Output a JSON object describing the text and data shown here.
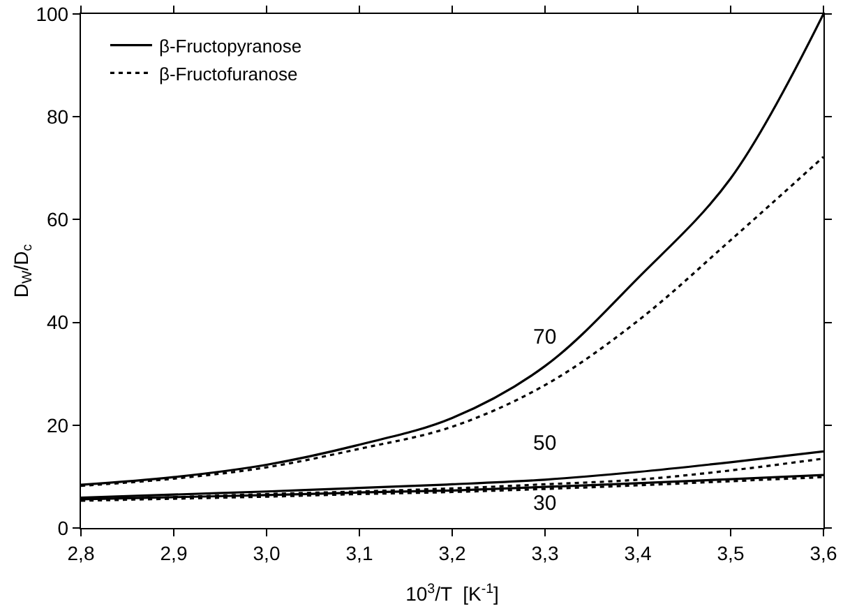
{
  "chart_data": {
    "type": "line",
    "xlabel": "10$^{3}$/T  [K$^{-1}$]",
    "ylabel": "D$_{W}$/D$_{c}$",
    "x": [
      2.8,
      2.9,
      3.0,
      3.1,
      3.2,
      3.3,
      3.4,
      3.5,
      3.6
    ],
    "series": [
      {
        "name": "β-Fructopyranose",
        "color": "#000000",
        "line_style": "solid",
        "values": [
          8.4,
          9.9,
          12.3,
          16.2,
          21.4,
          31.5,
          48.6,
          68,
          100
        ]
      },
      {
        "name": "β-Fructofuranose",
        "color": "#000000",
        "line_style": "dotted",
        "values": [
          8.2,
          9.6,
          11.8,
          15.4,
          19.7,
          27.8,
          40.3,
          56,
          72.2
        ]
      },
      {
        "color": "#000000",
        "line_style": "solid",
        "values": [
          5.9,
          6.5,
          7.1,
          7.8,
          8.5,
          9.4,
          10.9,
          12.8,
          14.9
        ]
      },
      {
        "color": "#000000",
        "line_style": "dotted",
        "values": [
          5.5,
          6.0,
          6.6,
          7.1,
          7.7,
          8.5,
          9.4,
          11.2,
          13.5
        ]
      },
      {
        "color": "#000000",
        "line_style": "solid",
        "values": [
          5.6,
          6.0,
          6.4,
          6.9,
          7.3,
          8.0,
          8.7,
          9.5,
          10.3
        ]
      },
      {
        "color": "#000000",
        "line_style": "dotted",
        "values": [
          5.3,
          5.7,
          6.1,
          6.6,
          7.0,
          7.6,
          8.3,
          9.1,
          9.9
        ]
      }
    ],
    "xlim": [
      2.8,
      3.6
    ],
    "xticks": [
      {
        "value": 2.8,
        "label": "2,8"
      },
      {
        "value": 2.9,
        "label": "2,9"
      },
      {
        "value": 3.0,
        "label": "3,0"
      },
      {
        "value": 3.1,
        "label": "3,1"
      },
      {
        "value": 3.2,
        "label": "3,2"
      },
      {
        "value": 3.3,
        "label": "3,3"
      },
      {
        "value": 3.4,
        "label": "3,4"
      },
      {
        "value": 3.5,
        "label": "3,5"
      },
      {
        "value": 3.6,
        "label": "3,6"
      }
    ],
    "ylim": [
      0,
      100
    ],
    "yticks": [
      0,
      20,
      40,
      60,
      80,
      100
    ],
    "annotations": [
      "70",
      "50",
      "30"
    ],
    "legend": "top left",
    "grid": false,
    "marker": "none"
  }
}
